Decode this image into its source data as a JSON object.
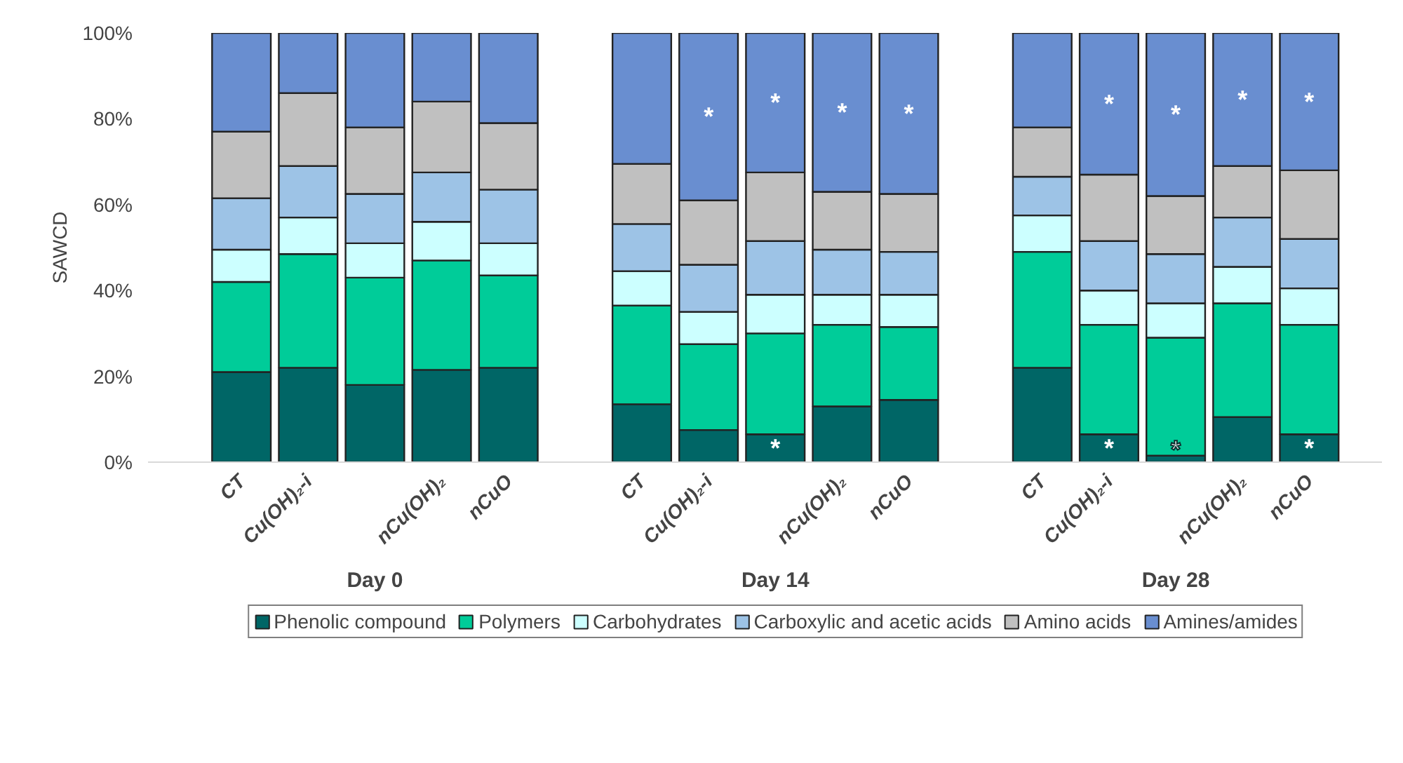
{
  "chart_data": {
    "type": "bar",
    "stacked": true,
    "ylabel": "SAWCD",
    "categories": [
      "CT",
      "Cu(OH)₂-i",
      null,
      "nCu(OH)₂",
      "nCuO",
      "CT",
      "Cu(OH)₂-i",
      null,
      "nCu(OH)₂",
      "nCuO",
      "CT",
      "Cu(OH)₂-i",
      null,
      "nCu(OH)₂",
      "nCuO"
    ],
    "annotations": [
      "Day 0",
      "Day 14",
      "Day 28"
    ],
    "series": [
      {
        "name": "Phenolic compound",
        "color": "#006666",
        "values": [
          21,
          22,
          18,
          21.5,
          22,
          13.5,
          7.5,
          6.5,
          13,
          14.5,
          22,
          6.5,
          1.5,
          10.5,
          6.5
        ],
        "value_labels": [
          null,
          null,
          null,
          null,
          null,
          null,
          null,
          "*",
          null,
          null,
          null,
          "*",
          "*",
          null,
          "*"
        ]
      },
      {
        "name": "Polymers",
        "color": "#00cc99",
        "values": [
          21,
          26.5,
          25,
          25.5,
          21.5,
          23,
          20,
          23.5,
          19,
          17,
          27,
          25.5,
          27.5,
          26.5,
          25.5
        ]
      },
      {
        "name": "Carbohydrates",
        "color": "#ccffff",
        "values": [
          7.5,
          8.5,
          8,
          9,
          7.5,
          8,
          7.5,
          9,
          7,
          7.5,
          8.5,
          8,
          8,
          8.5,
          8.5
        ]
      },
      {
        "name": "Carboxylic and acetic acids",
        "color": "#9dc3e6",
        "values": [
          12,
          12,
          11.5,
          11.5,
          12.5,
          11,
          11,
          12.5,
          10.5,
          10,
          9,
          11.5,
          11.5,
          11.5,
          11.5
        ]
      },
      {
        "name": "Amino acids",
        "color": "#c0c0c0",
        "values": [
          15.5,
          17,
          15.5,
          16.5,
          15.5,
          14,
          15,
          16,
          13.5,
          13.5,
          11.5,
          15.5,
          13.5,
          12,
          16
        ]
      },
      {
        "name": "Amines/amides",
        "color": "#698ed0",
        "values": [
          23,
          14,
          22,
          16,
          21,
          30.5,
          39,
          32.5,
          37,
          37.5,
          22,
          33,
          38,
          31,
          32
        ],
        "value_labels": [
          null,
          null,
          null,
          null,
          null,
          null,
          "*",
          "*",
          "*",
          "*",
          null,
          "*",
          "*",
          "*",
          "*"
        ]
      }
    ],
    "ylim": [
      0,
      100
    ],
    "yticks": [
      {
        "value": 0,
        "label": "0%"
      },
      {
        "value": 20,
        "label": "20%"
      },
      {
        "value": 40,
        "label": "40%"
      },
      {
        "value": 60,
        "label": "60%"
      },
      {
        "value": 80,
        "label": "80%"
      },
      {
        "value": 100,
        "label": "100%"
      }
    ],
    "grid": false,
    "legend": "bottom"
  }
}
